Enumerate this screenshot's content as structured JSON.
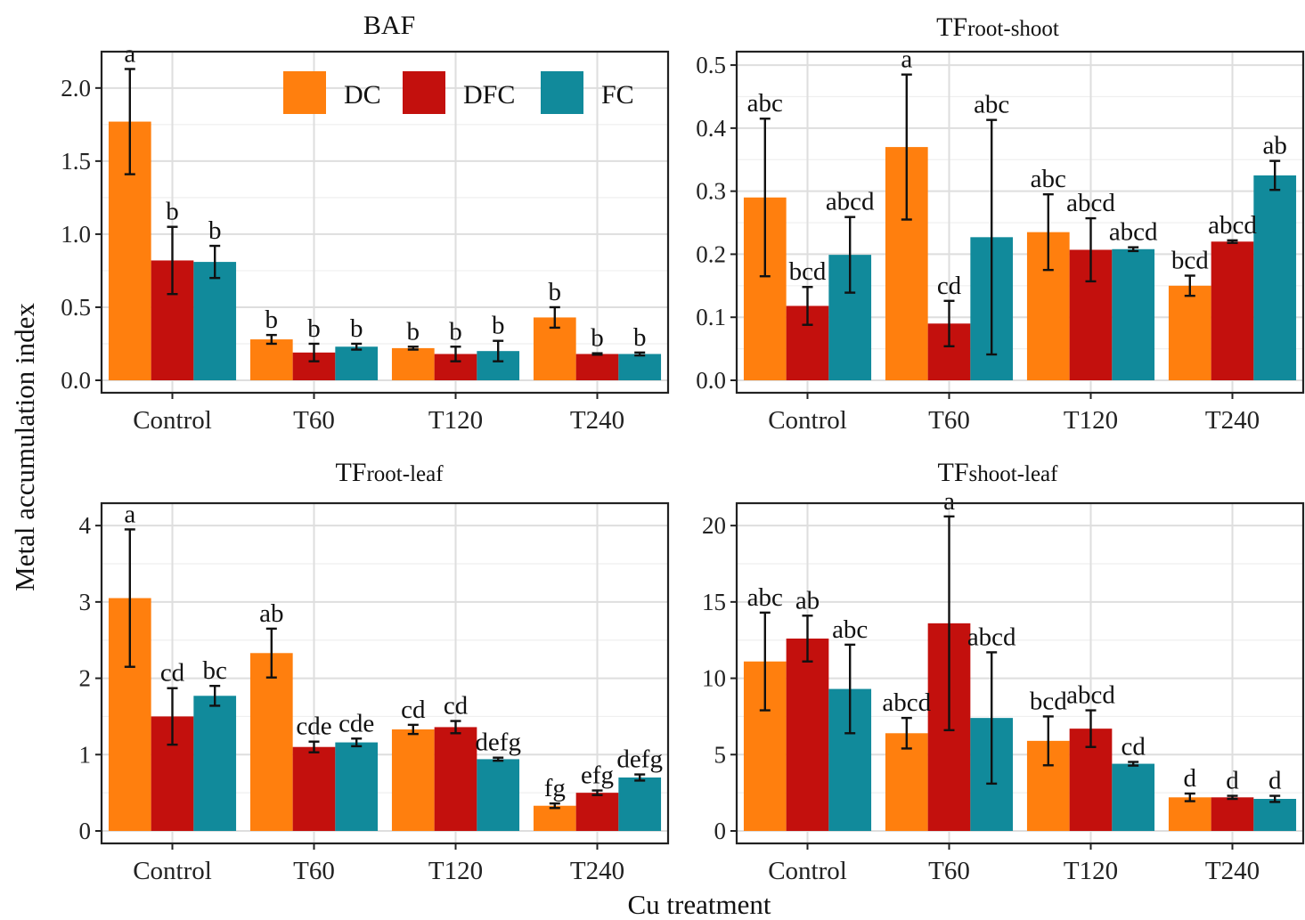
{
  "figure": {
    "y_axis_title": "Metal accumulation index",
    "x_axis_title": "Cu treatment"
  },
  "legend": {
    "entries": [
      {
        "name": "DC",
        "color": "#FF7F0E"
      },
      {
        "name": "DFC",
        "color": "#C3100D"
      },
      {
        "name": "FC",
        "color": "#118A9B"
      }
    ]
  },
  "chart_data": [
    {
      "type": "bar",
      "title": "BAF",
      "title_main": "BAF",
      "title_sub": "",
      "categories": [
        "Control",
        "T60",
        "T120",
        "T240"
      ],
      "ylim": [
        0,
        2.2
      ],
      "yticks": [
        0,
        0.5,
        1,
        1.5,
        2
      ],
      "ytick_labels": [
        "0.0",
        "0.5",
        "1.0",
        "1.5",
        "2.0"
      ],
      "grid": true,
      "legend_position": "top-right",
      "series": [
        {
          "name": "DC",
          "color": "#FF7F0E",
          "values": [
            1.77,
            0.28,
            0.22,
            0.43
          ],
          "errors": [
            0.36,
            0.03,
            0.01,
            0.07
          ],
          "letters": [
            "a",
            "b",
            "b",
            "b"
          ]
        },
        {
          "name": "DFC",
          "color": "#C3100D",
          "values": [
            0.82,
            0.19,
            0.18,
            0.18
          ],
          "errors": [
            0.23,
            0.06,
            0.05,
            0.005
          ],
          "letters": [
            "b",
            "b",
            "b",
            "b"
          ]
        },
        {
          "name": "FC",
          "color": "#118A9B",
          "values": [
            0.81,
            0.23,
            0.2,
            0.18
          ],
          "errors": [
            0.11,
            0.02,
            0.07,
            0.01
          ],
          "letters": [
            "b",
            "b",
            "b",
            "b"
          ]
        }
      ]
    },
    {
      "type": "bar",
      "title": "TFroot-shoot",
      "title_main": "TF",
      "title_sub": "root-shoot",
      "categories": [
        "Control",
        "T60",
        "T120",
        "T240"
      ],
      "ylim": [
        0,
        0.51
      ],
      "yticks": [
        0,
        0.1,
        0.2,
        0.3,
        0.4,
        0.5
      ],
      "ytick_labels": [
        "0.0",
        "0.1",
        "0.2",
        "0.3",
        "0.4",
        "0.5"
      ],
      "grid": true,
      "series": [
        {
          "name": "DC",
          "color": "#FF7F0E",
          "values": [
            0.29,
            0.37,
            0.235,
            0.15
          ],
          "errors": [
            0.125,
            0.115,
            0.06,
            0.016
          ],
          "letters": [
            "abc",
            "a",
            "abc",
            "bcd"
          ]
        },
        {
          "name": "DFC",
          "color": "#C3100D",
          "values": [
            0.118,
            0.09,
            0.207,
            0.22
          ],
          "errors": [
            0.03,
            0.036,
            0.05,
            0.002
          ],
          "letters": [
            "bcd",
            "cd",
            "abcd",
            "abcd"
          ]
        },
        {
          "name": "FC",
          "color": "#118A9B",
          "values": [
            0.199,
            0.227,
            0.208,
            0.325
          ],
          "errors": [
            0.06,
            0.186,
            0.003,
            0.023
          ],
          "letters": [
            "abcd",
            "abc",
            "abcd",
            "ab"
          ]
        }
      ]
    },
    {
      "type": "bar",
      "title": "TFroot-leaf",
      "title_main": "TF",
      "title_sub": "root-leaf",
      "categories": [
        "Control",
        "T60",
        "T120",
        "T240"
      ],
      "ylim": [
        0,
        4.2
      ],
      "yticks": [
        0,
        1,
        2,
        3,
        4
      ],
      "ytick_labels": [
        "0",
        "1",
        "2",
        "3",
        "4"
      ],
      "grid": true,
      "series": [
        {
          "name": "DC",
          "color": "#FF7F0E",
          "values": [
            3.05,
            2.33,
            1.33,
            0.33
          ],
          "errors": [
            0.9,
            0.32,
            0.06,
            0.03
          ],
          "letters": [
            "a",
            "ab",
            "cd",
            "fg"
          ]
        },
        {
          "name": "DFC",
          "color": "#C3100D",
          "values": [
            1.5,
            1.1,
            1.36,
            0.5
          ],
          "errors": [
            0.37,
            0.07,
            0.08,
            0.03
          ],
          "letters": [
            "cd",
            "cde",
            "cd",
            "efg"
          ]
        },
        {
          "name": "FC",
          "color": "#118A9B",
          "values": [
            1.77,
            1.16,
            0.94,
            0.7
          ],
          "errors": [
            0.13,
            0.05,
            0.02,
            0.04
          ],
          "letters": [
            "bc",
            "cde",
            "defg",
            "defg"
          ]
        }
      ]
    },
    {
      "type": "bar",
      "title": "TFshoot-leaf",
      "title_main": "TF",
      "title_sub": "shoot-leaf",
      "categories": [
        "Control",
        "T60",
        "T120",
        "T240"
      ],
      "ylim": [
        0,
        21
      ],
      "yticks": [
        0,
        5,
        10,
        15,
        20
      ],
      "ytick_labels": [
        "0",
        "5",
        "10",
        "15",
        "20"
      ],
      "grid": true,
      "series": [
        {
          "name": "DC",
          "color": "#FF7F0E",
          "values": [
            11.1,
            6.4,
            5.9,
            2.2
          ],
          "errors": [
            3.2,
            1.0,
            1.6,
            0.25
          ],
          "letters": [
            "abc",
            "abcd",
            "bcd",
            "d"
          ]
        },
        {
          "name": "DFC",
          "color": "#C3100D",
          "values": [
            12.6,
            13.6,
            6.7,
            2.2
          ],
          "errors": [
            1.5,
            7.0,
            1.2,
            0.1
          ],
          "letters": [
            "ab",
            "a",
            "abcd",
            "d"
          ]
        },
        {
          "name": "FC",
          "color": "#118A9B",
          "values": [
            9.3,
            7.4,
            4.4,
            2.1
          ],
          "errors": [
            2.9,
            4.3,
            0.12,
            0.2
          ],
          "letters": [
            "abc",
            "abcd",
            "cd",
            "d"
          ]
        }
      ]
    }
  ]
}
